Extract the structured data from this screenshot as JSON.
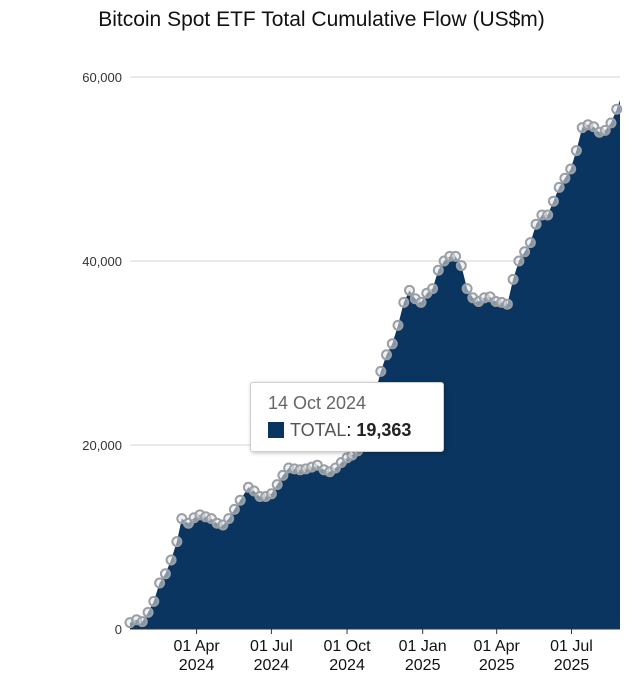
{
  "colors": {
    "area": "#0a3560",
    "marker_stroke": "#9a9fa6",
    "marker_fill": "#e4e6e8",
    "grid": "#d6d6d6",
    "axis": "#333333"
  },
  "chart_data": {
    "type": "area",
    "title": "Bitcoin Spot ETF Total Cumulative Flow (US$m)",
    "xlabel": "",
    "ylabel": "",
    "ylim": [
      0,
      60000
    ],
    "xlim": [
      "2024-01-11",
      "2025-08-29"
    ],
    "y_ticks": [
      "0",
      "20,000",
      "40,000",
      "60,000"
    ],
    "y_tick_values": [
      0,
      20000,
      40000,
      60000
    ],
    "x_ticks": [
      {
        "date": "2024-04-01",
        "line1": "01 Apr",
        "line2": "2024"
      },
      {
        "date": "2024-07-01",
        "line1": "01 Jul",
        "line2": "2024"
      },
      {
        "date": "2024-10-01",
        "line1": "01 Oct",
        "line2": "2024"
      },
      {
        "date": "2025-01-01",
        "line1": "01 Jan",
        "line2": "2025"
      },
      {
        "date": "2025-04-01",
        "line1": "01 Apr",
        "line2": "2025"
      },
      {
        "date": "2025-07-01",
        "line1": "01 Jul",
        "line2": "2025"
      }
    ],
    "grid": true,
    "legend": "none",
    "series": [
      {
        "name": "TOTAL",
        "points": [
          [
            "2024-01-11",
            700
          ],
          [
            "2024-01-19",
            1000
          ],
          [
            "2024-01-26",
            800
          ],
          [
            "2024-02-02",
            1800
          ],
          [
            "2024-02-09",
            3000
          ],
          [
            "2024-02-16",
            5000
          ],
          [
            "2024-02-23",
            6000
          ],
          [
            "2024-03-01",
            7500
          ],
          [
            "2024-03-08",
            9500
          ],
          [
            "2024-03-14",
            12000
          ],
          [
            "2024-03-22",
            11500
          ],
          [
            "2024-03-29",
            12100
          ],
          [
            "2024-04-05",
            12400
          ],
          [
            "2024-04-12",
            12200
          ],
          [
            "2024-04-19",
            12000
          ],
          [
            "2024-04-26",
            11500
          ],
          [
            "2024-05-03",
            11300
          ],
          [
            "2024-05-10",
            12000
          ],
          [
            "2024-05-17",
            13000
          ],
          [
            "2024-05-24",
            14000
          ],
          [
            "2024-06-03",
            15400
          ],
          [
            "2024-06-10",
            15000
          ],
          [
            "2024-06-17",
            14400
          ],
          [
            "2024-06-24",
            14400
          ],
          [
            "2024-07-01",
            14700
          ],
          [
            "2024-07-08",
            15700
          ],
          [
            "2024-07-15",
            16700
          ],
          [
            "2024-07-22",
            17500
          ],
          [
            "2024-07-29",
            17400
          ],
          [
            "2024-08-05",
            17300
          ],
          [
            "2024-08-12",
            17400
          ],
          [
            "2024-08-19",
            17600
          ],
          [
            "2024-08-26",
            17800
          ],
          [
            "2024-09-03",
            17300
          ],
          [
            "2024-09-10",
            17100
          ],
          [
            "2024-09-17",
            17500
          ],
          [
            "2024-09-24",
            18100
          ],
          [
            "2024-10-01",
            18600
          ],
          [
            "2024-10-07",
            18900
          ],
          [
            "2024-10-14",
            19363
          ],
          [
            "2024-10-21",
            21400
          ],
          [
            "2024-10-28",
            23800
          ],
          [
            "2024-11-04",
            25500
          ],
          [
            "2024-11-11",
            28000
          ],
          [
            "2024-11-18",
            29800
          ],
          [
            "2024-11-25",
            31000
          ],
          [
            "2024-12-02",
            33000
          ],
          [
            "2024-12-09",
            35500
          ],
          [
            "2024-12-16",
            36800
          ],
          [
            "2024-12-23",
            35900
          ],
          [
            "2024-12-30",
            35500
          ],
          [
            "2025-01-06",
            36500
          ],
          [
            "2025-01-13",
            37000
          ],
          [
            "2025-01-20",
            39000
          ],
          [
            "2025-01-27",
            40000
          ],
          [
            "2025-02-03",
            40500
          ],
          [
            "2025-02-10",
            40500
          ],
          [
            "2025-02-17",
            39500
          ],
          [
            "2025-02-24",
            37000
          ],
          [
            "2025-03-03",
            36000
          ],
          [
            "2025-03-10",
            35600
          ],
          [
            "2025-03-17",
            36000
          ],
          [
            "2025-03-24",
            36100
          ],
          [
            "2025-03-31",
            35600
          ],
          [
            "2025-04-07",
            35500
          ],
          [
            "2025-04-14",
            35300
          ],
          [
            "2025-04-21",
            38000
          ],
          [
            "2025-04-28",
            40000
          ],
          [
            "2025-05-05",
            41000
          ],
          [
            "2025-05-12",
            42000
          ],
          [
            "2025-05-19",
            44000
          ],
          [
            "2025-05-26",
            45000
          ],
          [
            "2025-06-02",
            45000
          ],
          [
            "2025-06-09",
            46500
          ],
          [
            "2025-06-16",
            48000
          ],
          [
            "2025-06-23",
            49000
          ],
          [
            "2025-06-30",
            50000
          ],
          [
            "2025-07-07",
            52000
          ],
          [
            "2025-07-14",
            54500
          ],
          [
            "2025-07-21",
            54800
          ],
          [
            "2025-07-28",
            54600
          ],
          [
            "2025-08-04",
            54000
          ],
          [
            "2025-08-11",
            54200
          ],
          [
            "2025-08-18",
            55000
          ],
          [
            "2025-08-25",
            56500
          ],
          [
            "2025-08-29",
            57500
          ]
        ]
      }
    ]
  },
  "tooltip": {
    "date": "14 Oct 2024",
    "series": "TOTAL",
    "separator": ": ",
    "value": "19,363"
  }
}
